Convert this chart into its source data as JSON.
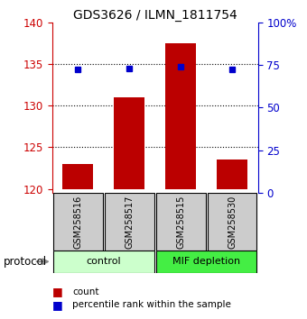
{
  "title": "GDS3626 / ILMN_1811754",
  "samples": [
    "GSM258516",
    "GSM258517",
    "GSM258515",
    "GSM258530"
  ],
  "bar_values": [
    123.0,
    131.0,
    137.5,
    123.5
  ],
  "bar_bottom": 120,
  "dot_values": [
    134.4,
    134.5,
    134.7,
    134.4
  ],
  "ylim_left": [
    119.5,
    140
  ],
  "ylim_right": [
    0,
    100
  ],
  "yticks_left": [
    120,
    125,
    130,
    135,
    140
  ],
  "yticks_right": [
    0,
    25,
    50,
    75,
    100
  ],
  "ytick_labels_right": [
    "0",
    "25",
    "50",
    "75",
    "100%"
  ],
  "bar_color": "#bb0000",
  "dot_color": "#0000cc",
  "bar_width": 0.6,
  "groups": [
    {
      "label": "control",
      "samples": [
        0,
        1
      ],
      "color": "#ccffcc"
    },
    {
      "label": "MIF depletion",
      "samples": [
        2,
        3
      ],
      "color": "#44ee44"
    }
  ],
  "protocol_label": "protocol",
  "legend_count_label": "count",
  "legend_pct_label": "percentile rank within the sample",
  "grid_yticks": [
    125,
    130,
    135
  ],
  "sample_box_color": "#cccccc",
  "sample_box_edgecolor": "#000000",
  "left_axis_color": "#cc0000",
  "right_axis_color": "#0000cc",
  "background_color": "#ffffff"
}
